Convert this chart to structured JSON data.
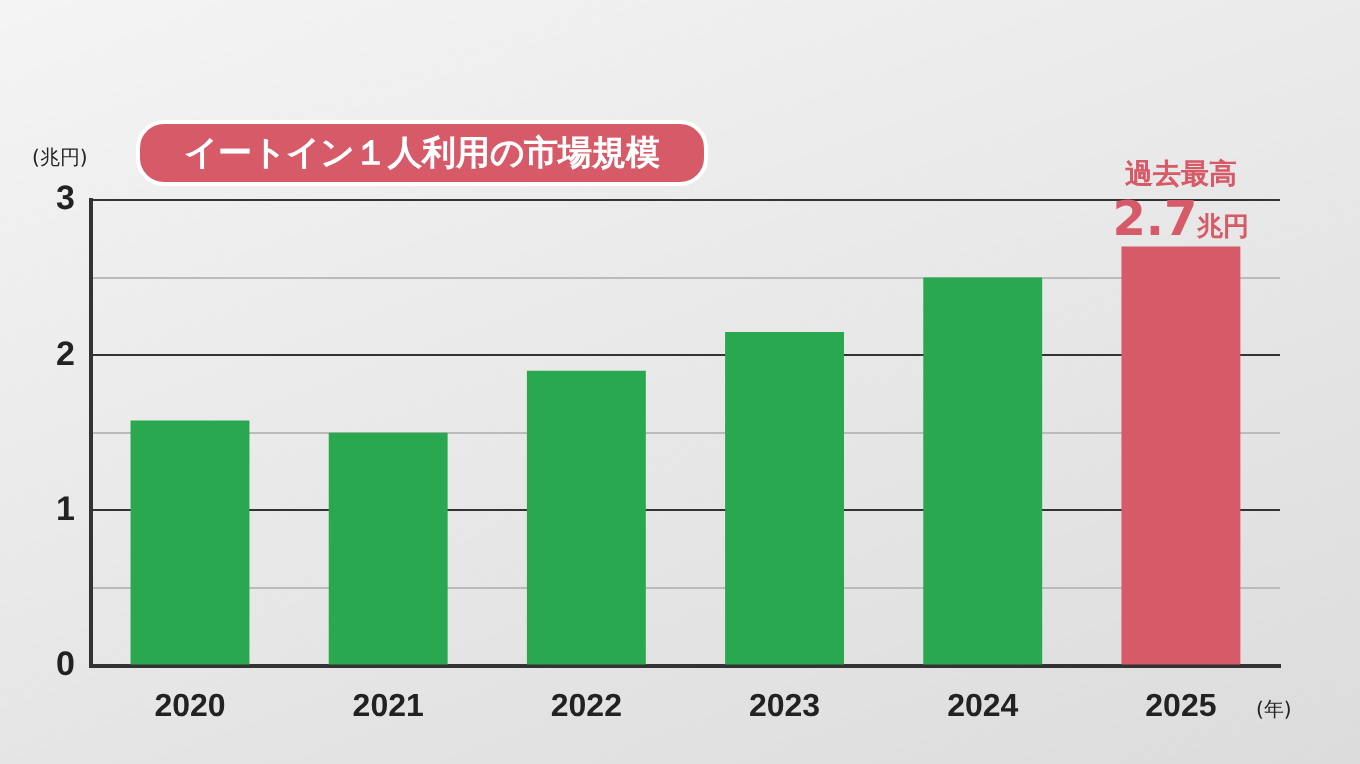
{
  "chart_data": {
    "type": "bar",
    "title": "イートイン１人利用の市場規模",
    "ylabel": "(兆円)",
    "xlabel": "(年)",
    "categories": [
      "2020",
      "2021",
      "2022",
      "2023",
      "2024",
      "2025"
    ],
    "values": [
      1.58,
      1.5,
      1.9,
      2.15,
      2.5,
      2.7
    ],
    "colors": [
      "#2aa84f",
      "#2aa84f",
      "#2aa84f",
      "#2aa84f",
      "#2aa84f",
      "#d65a68"
    ],
    "value_labels": [
      null,
      null,
      null,
      null,
      null,
      "2.7兆円"
    ],
    "annotations": [
      {
        "text": "過去最高",
        "x": "2025",
        "y": 2.7
      }
    ],
    "ylim": [
      0,
      3
    ],
    "yticks": [
      0,
      {
        "value": 0.5,
        "label": null
      },
      1,
      {
        "value": 1.5,
        "label": null
      },
      2,
      {
        "value": 2.5,
        "label": null
      },
      3
    ],
    "grid": "y",
    "legend": false
  }
}
